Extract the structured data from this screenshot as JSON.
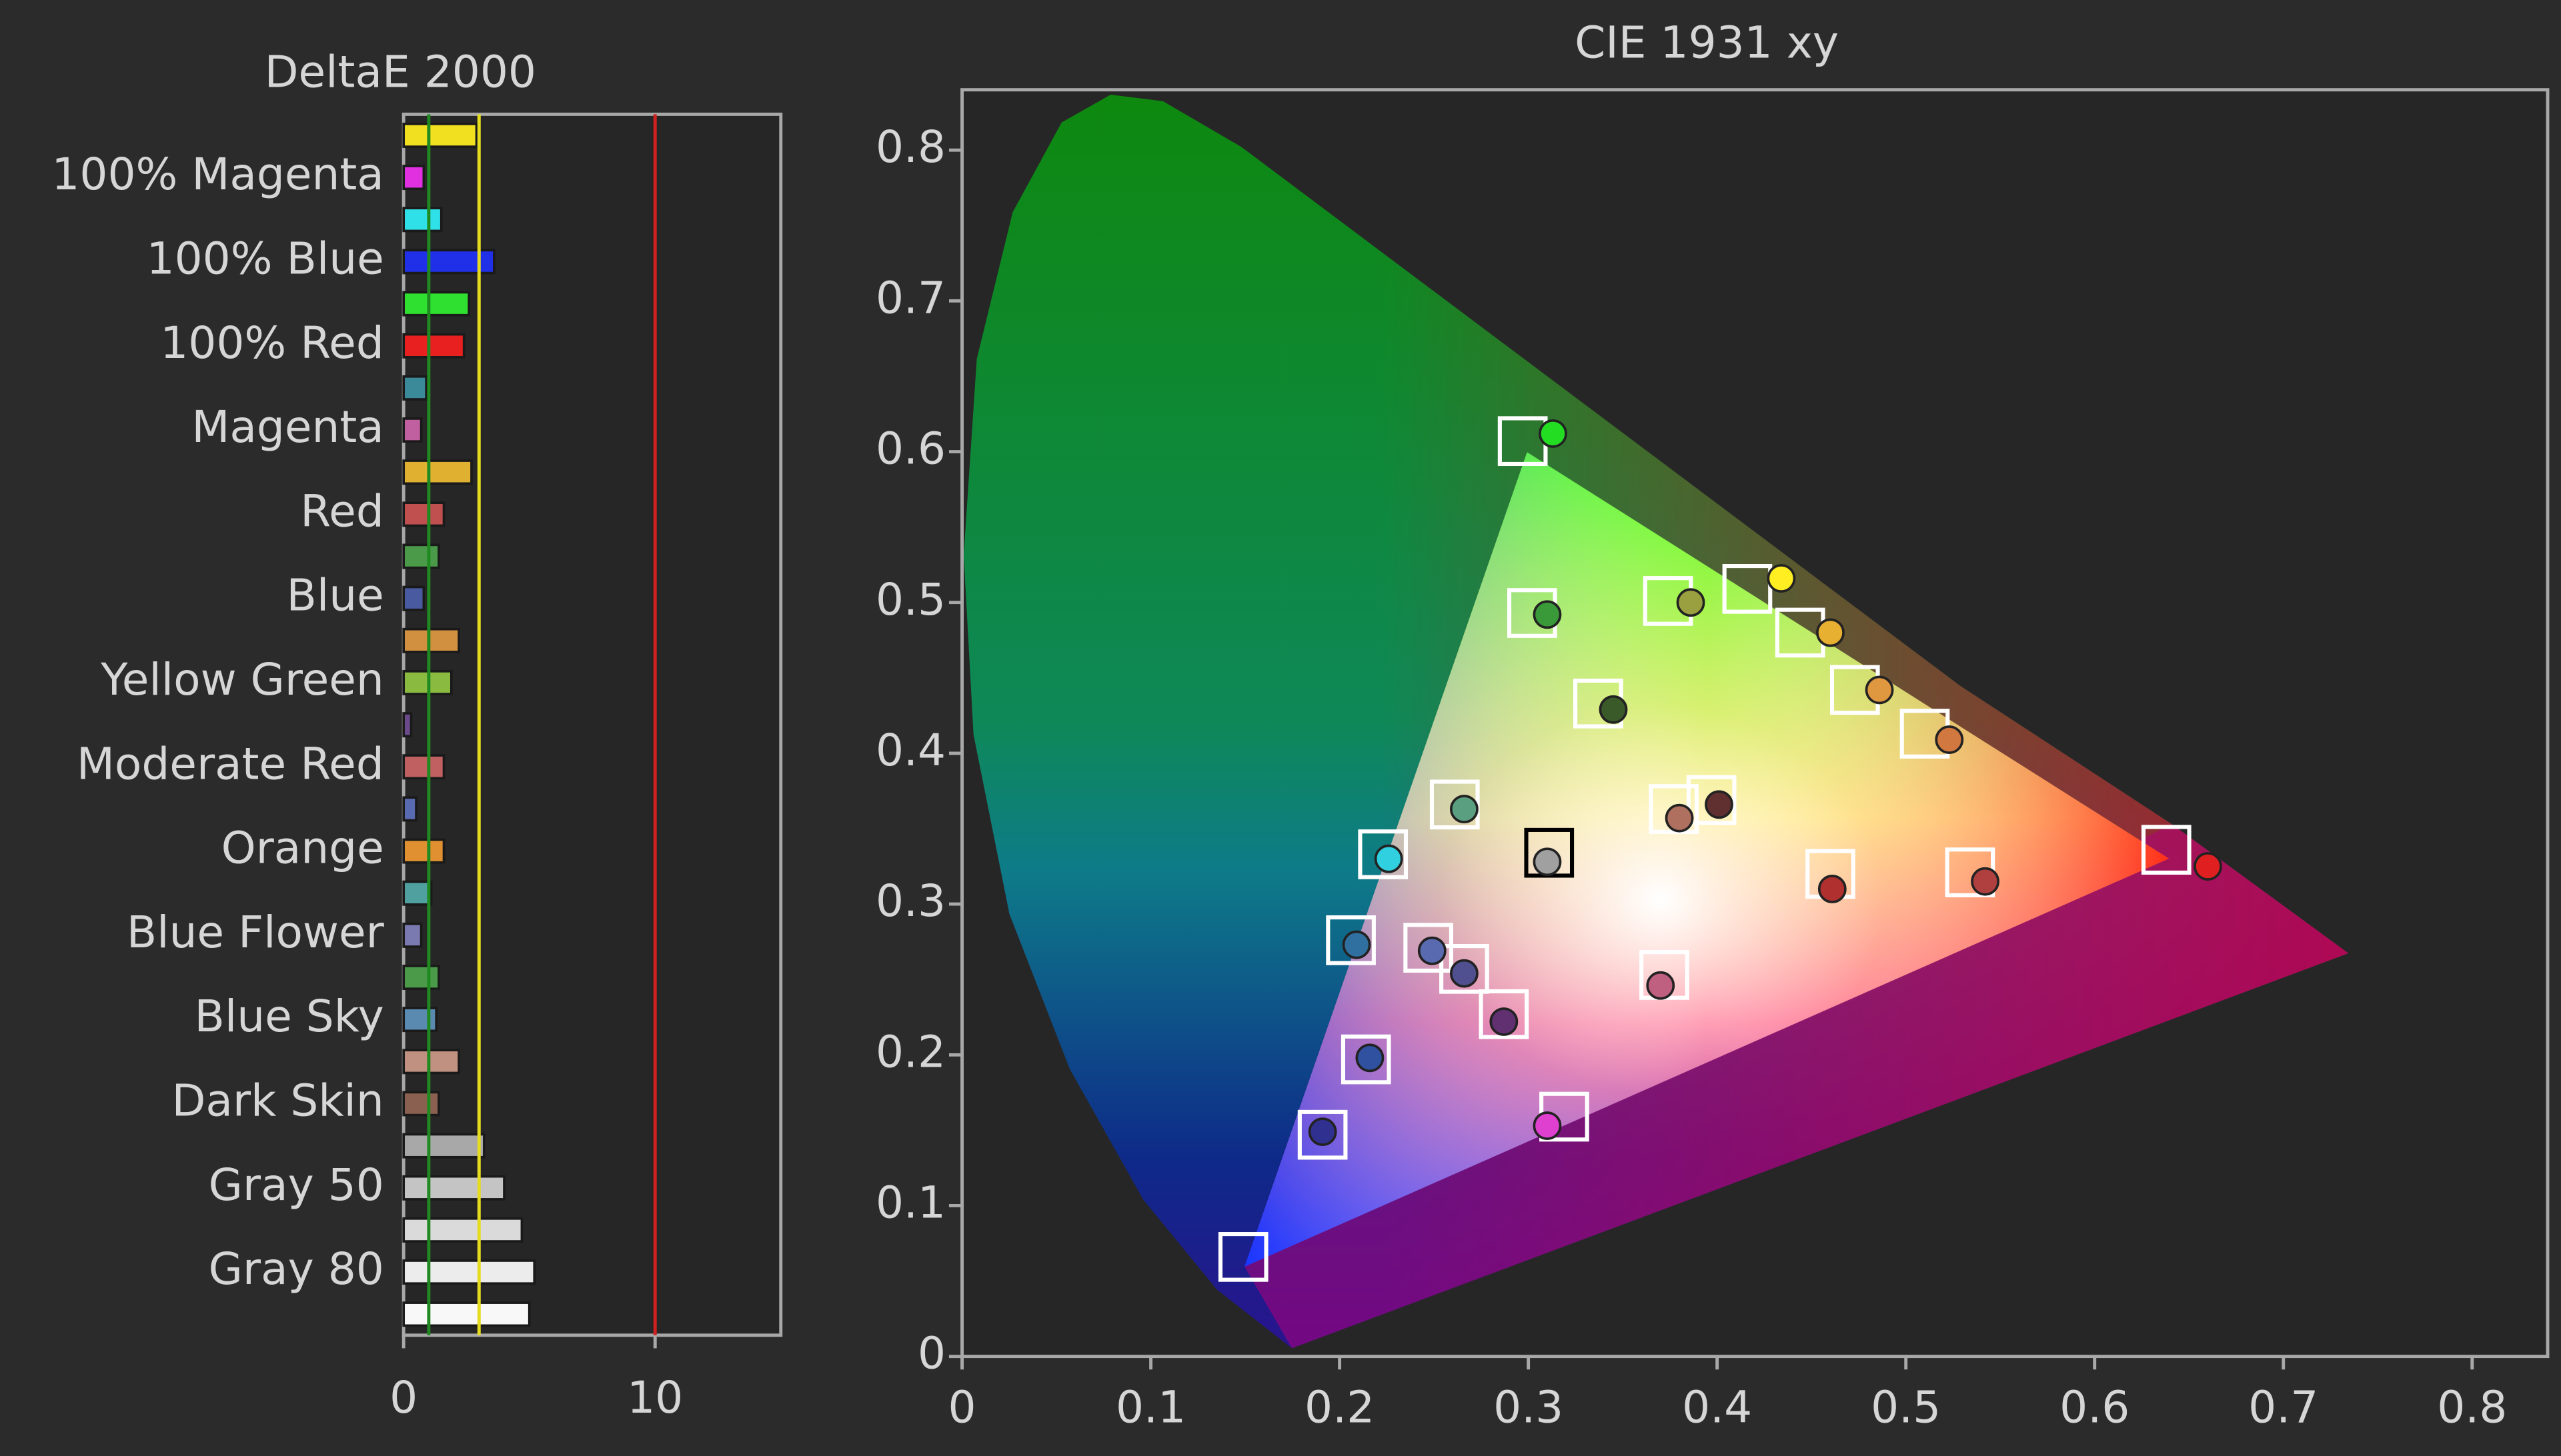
{
  "chart_data": [
    {
      "type": "bar",
      "orientation": "horizontal",
      "title": "DeltaE 2000",
      "categories": [
        null,
        "100% Magenta",
        null,
        "100% Blue",
        null,
        "100% Red",
        null,
        "Magenta",
        null,
        "Red",
        null,
        "Blue",
        null,
        "Yellow Green",
        null,
        "Moderate Red",
        null,
        "Orange",
        null,
        "Blue Flower",
        null,
        "Blue Sky",
        null,
        "Dark Skin",
        null,
        "Gray 50",
        null,
        "Gray 80",
        null
      ],
      "values": [
        2.9,
        0.8,
        1.5,
        3.6,
        2.6,
        2.4,
        0.9,
        0.7,
        2.7,
        1.6,
        1.4,
        0.8,
        2.2,
        1.9,
        0.3,
        1.6,
        0.5,
        1.6,
        1.1,
        0.7,
        1.4,
        1.3,
        2.2,
        1.4,
        3.2,
        4.0,
        4.7,
        5.2,
        5.0
      ],
      "colors": [
        "#f0e020",
        "#e030e0",
        "#30e0e8",
        "#2030e8",
        "#30e030",
        "#e82020",
        "#3a8a9a",
        "#c060a0",
        "#e0b030",
        "#c05050",
        "#4a9a4a",
        "#4a5aa0",
        "#d09040",
        "#8aba40",
        "#6a4a8a",
        "#c06060",
        "#5a6ab0",
        "#e09030",
        "#50a0a0",
        "#7a7ab0",
        "#4a9a4a",
        "#5a8ab0",
        "#c09080",
        "#8a6050",
        "#a8a8a8",
        "#c4c4c4",
        "#dadada",
        "#ececec",
        "#f8f8f8"
      ],
      "xlim": [
        0,
        15
      ],
      "xticks": [
        0,
        10
      ],
      "reference_lines": [
        {
          "value": 1,
          "color": "#1f8a1f"
        },
        {
          "value": 3,
          "color": "#e6dc1e"
        },
        {
          "value": 10,
          "color": "#d02020"
        }
      ]
    },
    {
      "type": "scatter",
      "title": "CIE 1931 xy",
      "xlim": [
        0,
        0.84
      ],
      "ylim": [
        0,
        0.84
      ],
      "xticks": [
        0,
        0.1,
        0.2,
        0.3,
        0.4,
        0.5,
        0.6,
        0.7,
        0.8
      ],
      "yticks": [
        0,
        0.1,
        0.2,
        0.3,
        0.4,
        0.5,
        0.6,
        0.7,
        0.8
      ],
      "targets": {
        "x": [
          0.297,
          0.416,
          0.444,
          0.473,
          0.51,
          0.638,
          0.302,
          0.374,
          0.337,
          0.261,
          0.397,
          0.377,
          0.223,
          0.311,
          0.46,
          0.534,
          0.206,
          0.247,
          0.266,
          0.287,
          0.372,
          0.214,
          0.319,
          0.191,
          0.149
        ],
        "y": [
          0.607,
          0.509,
          0.48,
          0.442,
          0.413,
          0.336,
          0.493,
          0.501,
          0.433,
          0.366,
          0.369,
          0.363,
          0.333,
          0.334,
          0.32,
          0.321,
          0.276,
          0.271,
          0.257,
          0.227,
          0.253,
          0.197,
          0.159,
          0.147,
          0.066
        ],
        "colors": [
          "#ffffff",
          "#ffffff",
          "#ffffff",
          "#ffffff",
          "#ffffff",
          "#ffffff",
          "#ffffff",
          "#ffffff",
          "#ffffff",
          "#ffffff",
          "#ffffff",
          "#ffffff",
          "#ffffff",
          "#000000",
          "#ffffff",
          "#ffffff",
          "#ffffff",
          "#ffffff",
          "#ffffff",
          "#ffffff",
          "#ffffff",
          "#ffffff",
          "#ffffff",
          "#ffffff",
          "#ffffff"
        ]
      },
      "measured": {
        "x": [
          0.313,
          0.434,
          0.46,
          0.486,
          0.523,
          0.66,
          0.31,
          0.386,
          0.345,
          0.266,
          0.401,
          0.38,
          0.226,
          0.31,
          0.461,
          0.542,
          0.209,
          0.249,
          0.266,
          0.287,
          0.37,
          0.216,
          0.31,
          0.191
        ],
        "y": [
          0.612,
          0.516,
          0.48,
          0.442,
          0.409,
          0.325,
          0.492,
          0.5,
          0.429,
          0.363,
          0.366,
          0.357,
          0.33,
          0.328,
          0.31,
          0.315,
          0.273,
          0.269,
          0.254,
          0.222,
          0.246,
          0.198,
          0.153,
          0.149
        ],
        "colors": [
          "#22dd22",
          "#ffee22",
          "#e8b030",
          "#e09840",
          "#d07840",
          "#e02020",
          "#3a9a3a",
          "#9aa040",
          "#3a5a2a",
          "#5aa080",
          "#603030",
          "#b07060",
          "#30d0e0",
          "#a0a0a0",
          "#b03030",
          "#b04040",
          "#3070a0",
          "#5a6ab0",
          "#505090",
          "#603070",
          "#c06080",
          "#3050a0",
          "#e040d0",
          "#303090"
        ]
      }
    }
  ]
}
